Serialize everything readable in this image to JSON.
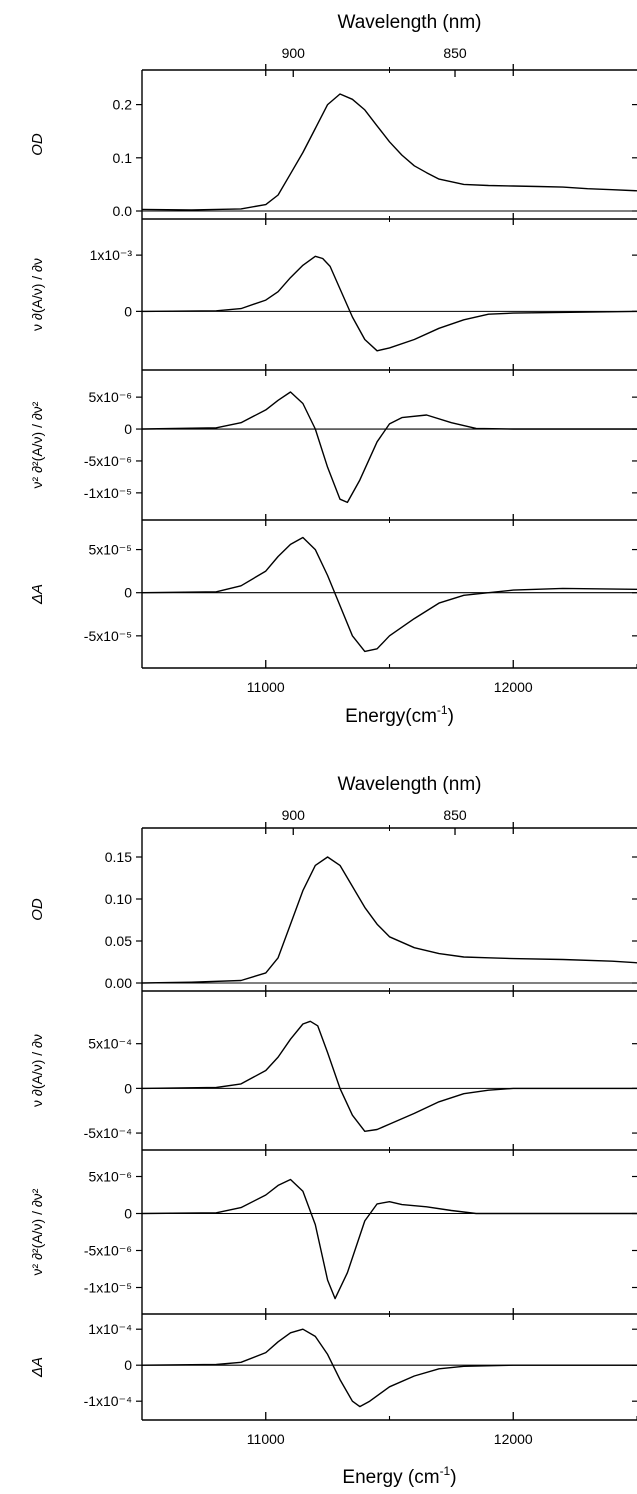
{
  "chart_data": [
    {
      "type": "line",
      "figure": "top",
      "top_axis_label": "Wavelength (nm)",
      "top_ticks": [
        "900",
        "850"
      ],
      "xlabel": "Energy(cm⁻¹)",
      "xlim": [
        10500,
        12500
      ],
      "x_ticks": [
        "11000",
        "12000"
      ],
      "panels": [
        {
          "ylabel": "OD",
          "ylim": [
            0,
            0.25
          ],
          "y_ticks": [
            "0.0",
            "0.1",
            "0.2"
          ],
          "series": [
            {
              "points": [
                [
                  10500,
                  0.003
                ],
                [
                  10700,
                  0.002
                ],
                [
                  10900,
                  0.004
                ],
                [
                  11000,
                  0.012
                ],
                [
                  11050,
                  0.03
                ],
                [
                  11100,
                  0.07
                ],
                [
                  11150,
                  0.11
                ],
                [
                  11200,
                  0.155
                ],
                [
                  11250,
                  0.2
                ],
                [
                  11300,
                  0.22
                ],
                [
                  11350,
                  0.21
                ],
                [
                  11400,
                  0.19
                ],
                [
                  11450,
                  0.16
                ],
                [
                  11500,
                  0.13
                ],
                [
                  11550,
                  0.105
                ],
                [
                  11600,
                  0.085
                ],
                [
                  11650,
                  0.072
                ],
                [
                  11700,
                  0.06
                ],
                [
                  11800,
                  0.05
                ],
                [
                  11900,
                  0.048
                ],
                [
                  12000,
                  0.047
                ],
                [
                  12100,
                  0.046
                ],
                [
                  12200,
                  0.045
                ],
                [
                  12300,
                  0.042
                ],
                [
                  12400,
                  0.04
                ],
                [
                  12500,
                  0.038
                ]
              ]
            }
          ]
        },
        {
          "ylabel": "ν ∂(A/ν) / ∂ν",
          "ylim": [
            -0.0009,
            0.0015
          ],
          "y_ticks": [
            "1x10⁻³",
            "0"
          ],
          "series": [
            {
              "points": [
                [
                  10500,
                  0
                ],
                [
                  10800,
                  1e-05
                ],
                [
                  10900,
                  5e-05
                ],
                [
                  11000,
                  0.0002
                ],
                [
                  11050,
                  0.00035
                ],
                [
                  11100,
                  0.0006
                ],
                [
                  11150,
                  0.00082
                ],
                [
                  11200,
                  0.00098
                ],
                [
                  11230,
                  0.00094
                ],
                [
                  11260,
                  0.0008
                ],
                [
                  11300,
                  0.0004
                ],
                [
                  11350,
                  -0.0001
                ],
                [
                  11400,
                  -0.0005
                ],
                [
                  11450,
                  -0.0007
                ],
                [
                  11500,
                  -0.00065
                ],
                [
                  11600,
                  -0.0005
                ],
                [
                  11700,
                  -0.0003
                ],
                [
                  11800,
                  -0.00015
                ],
                [
                  11900,
                  -5e-05
                ],
                [
                  12000,
                  -3e-05
                ],
                [
                  12500,
                  0
                ]
              ]
            }
          ]
        },
        {
          "ylabel": "ν² ∂²(A/ν) / ∂ν²",
          "ylim": [
            -1.3e-05,
            8e-06
          ],
          "y_ticks": [
            "5x10⁻⁶",
            "0",
            "-5x10⁻⁶",
            "-1x10⁻⁵"
          ],
          "series": [
            {
              "points": [
                [
                  10500,
                  0
                ],
                [
                  10800,
                  2e-07
                ],
                [
                  10900,
                  1e-06
                ],
                [
                  11000,
                  3e-06
                ],
                [
                  11050,
                  4.5e-06
                ],
                [
                  11100,
                  5.8e-06
                ],
                [
                  11150,
                  4e-06
                ],
                [
                  11200,
                  0
                ],
                [
                  11250,
                  -6e-06
                ],
                [
                  11300,
                  -1.1e-05
                ],
                [
                  11330,
                  -1.15e-05
                ],
                [
                  11380,
                  -8e-06
                ],
                [
                  11450,
                  -2e-06
                ],
                [
                  11500,
                  8e-07
                ],
                [
                  11550,
                  1.8e-06
                ],
                [
                  11650,
                  2.2e-06
                ],
                [
                  11750,
                  1e-06
                ],
                [
                  11850,
                  1e-07
                ],
                [
                  12000,
                  0
                ],
                [
                  12500,
                  0
                ]
              ]
            }
          ]
        },
        {
          "ylabel": "ΔA",
          "ylim": [
            -7.8e-05,
            7.5e-05
          ],
          "y_ticks": [
            "5x10⁻⁵",
            "0",
            "-5x10⁻⁵"
          ],
          "series": [
            {
              "points": [
                [
                  10500,
                  0
                ],
                [
                  10800,
                  1e-06
                ],
                [
                  10900,
                  8e-06
                ],
                [
                  11000,
                  2.5e-05
                ],
                [
                  11050,
                  4.2e-05
                ],
                [
                  11100,
                  5.6e-05
                ],
                [
                  11150,
                  6.4e-05
                ],
                [
                  11200,
                  5e-05
                ],
                [
                  11250,
                  2e-05
                ],
                [
                  11300,
                  -1.5e-05
                ],
                [
                  11350,
                  -5e-05
                ],
                [
                  11400,
                  -6.8e-05
                ],
                [
                  11450,
                  -6.5e-05
                ],
                [
                  11500,
                  -5e-05
                ],
                [
                  11600,
                  -3e-05
                ],
                [
                  11700,
                  -1.2e-05
                ],
                [
                  11800,
                  -3e-06
                ],
                [
                  11900,
                  0
                ],
                [
                  12000,
                  3e-06
                ],
                [
                  12200,
                  5e-06
                ],
                [
                  12500,
                  4e-06
                ]
              ]
            }
          ]
        }
      ]
    },
    {
      "type": "line",
      "figure": "bottom",
      "top_axis_label": "Wavelength (nm)",
      "top_ticks": [
        "900",
        "850"
      ],
      "xlabel": "Energy (cm⁻¹)",
      "xlim": [
        10500,
        12500
      ],
      "x_ticks": [
        "11000",
        "12000"
      ],
      "panels": [
        {
          "ylabel": "OD",
          "ylim": [
            0,
            0.175
          ],
          "y_ticks": [
            "0.00",
            "0.05",
            "0.10",
            "0.15"
          ],
          "series": [
            {
              "points": [
                [
                  10500,
                  0
                ],
                [
                  10700,
                  0.001
                ],
                [
                  10900,
                  0.003
                ],
                [
                  11000,
                  0.012
                ],
                [
                  11050,
                  0.03
                ],
                [
                  11100,
                  0.07
                ],
                [
                  11150,
                  0.11
                ],
                [
                  11200,
                  0.14
                ],
                [
                  11250,
                  0.15
                ],
                [
                  11300,
                  0.14
                ],
                [
                  11350,
                  0.115
                ],
                [
                  11400,
                  0.09
                ],
                [
                  11450,
                  0.07
                ],
                [
                  11500,
                  0.055
                ],
                [
                  11600,
                  0.042
                ],
                [
                  11700,
                  0.035
                ],
                [
                  11800,
                  0.031
                ],
                [
                  11900,
                  0.03
                ],
                [
                  12000,
                  0.029
                ],
                [
                  12200,
                  0.028
                ],
                [
                  12400,
                  0.026
                ],
                [
                  12500,
                  0.024
                ]
              ]
            }
          ]
        },
        {
          "ylabel": "ν ∂(A/ν) / ∂ν",
          "ylim": [
            -0.0006,
            0.001
          ],
          "y_ticks": [
            "5x10⁻⁴",
            "0",
            "-5x10⁻⁴"
          ],
          "series": [
            {
              "points": [
                [
                  10500,
                  0
                ],
                [
                  10800,
                  1e-05
                ],
                [
                  10900,
                  5e-05
                ],
                [
                  11000,
                  0.0002
                ],
                [
                  11050,
                  0.00035
                ],
                [
                  11100,
                  0.00055
                ],
                [
                  11150,
                  0.00072
                ],
                [
                  11180,
                  0.00075
                ],
                [
                  11210,
                  0.0007
                ],
                [
                  11250,
                  0.0004
                ],
                [
                  11300,
                  0
                ],
                [
                  11350,
                  -0.0003
                ],
                [
                  11400,
                  -0.00048
                ],
                [
                  11450,
                  -0.00046
                ],
                [
                  11500,
                  -0.0004
                ],
                [
                  11600,
                  -0.00028
                ],
                [
                  11700,
                  -0.00015
                ],
                [
                  11800,
                  -6e-05
                ],
                [
                  11900,
                  -2e-05
                ],
                [
                  12000,
                  0
                ],
                [
                  12500,
                  0
                ]
              ]
            }
          ]
        },
        {
          "ylabel": "ν² ∂²(A/ν) / ∂ν²",
          "ylim": [
            -1.25e-05,
            7.5e-06
          ],
          "y_ticks": [
            "5x10⁻⁶",
            "0",
            "-5x10⁻⁶",
            "-1x10⁻⁵"
          ],
          "series": [
            {
              "points": [
                [
                  10500,
                  0
                ],
                [
                  10800,
                  1e-07
                ],
                [
                  10900,
                  8e-07
                ],
                [
                  11000,
                  2.5e-06
                ],
                [
                  11050,
                  3.8e-06
                ],
                [
                  11100,
                  4.6e-06
                ],
                [
                  11150,
                  3e-06
                ],
                [
                  11200,
                  -1.5e-06
                ],
                [
                  11250,
                  -9e-06
                ],
                [
                  11280,
                  -1.15e-05
                ],
                [
                  11330,
                  -8e-06
                ],
                [
                  11400,
                  -1e-06
                ],
                [
                  11450,
                  1.3e-06
                ],
                [
                  11500,
                  1.6e-06
                ],
                [
                  11550,
                  1.2e-06
                ],
                [
                  11650,
                  9e-07
                ],
                [
                  11750,
                  4e-07
                ],
                [
                  11850,
                  0
                ],
                [
                  12500,
                  0
                ]
              ]
            }
          ]
        },
        {
          "ylabel": "ΔA",
          "ylim": [
            -0.00013,
            0.00012
          ],
          "y_ticks": [
            "1x10⁻⁴",
            "0",
            "-1x10⁻⁴"
          ],
          "series": [
            {
              "points": [
                [
                  10500,
                  0
                ],
                [
                  10800,
                  2e-06
                ],
                [
                  10900,
                  8e-06
                ],
                [
                  11000,
                  3.5e-05
                ],
                [
                  11050,
                  6.5e-05
                ],
                [
                  11100,
                  9e-05
                ],
                [
                  11150,
                  0.0001
                ],
                [
                  11200,
                  8e-05
                ],
                [
                  11250,
                  3e-05
                ],
                [
                  11300,
                  -4e-05
                ],
                [
                  11350,
                  -0.0001
                ],
                [
                  11380,
                  -0.000115
                ],
                [
                  11420,
                  -0.0001
                ],
                [
                  11500,
                  -6e-05
                ],
                [
                  11600,
                  -3e-05
                ],
                [
                  11700,
                  -1e-05
                ],
                [
                  11800,
                  -3e-06
                ],
                [
                  12000,
                  0
                ],
                [
                  12500,
                  0
                ]
              ]
            }
          ]
        }
      ]
    }
  ]
}
